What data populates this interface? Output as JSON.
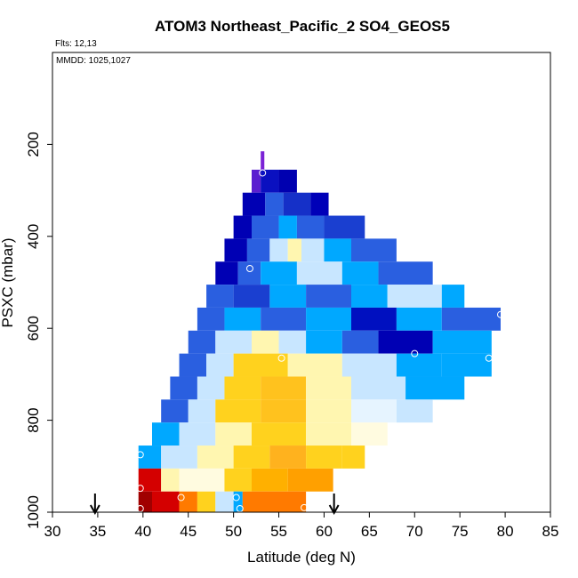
{
  "chart_data": {
    "type": "heatmap",
    "title": "ATOM3 Northeast_Pacific_2 SO4_GEOS5",
    "annotations": [
      "Flts: 12,13",
      "MMDD: 1025,1027"
    ],
    "xlabel": "Latitude (deg N)",
    "ylabel": "PSXC (mbar)",
    "xlim": [
      30,
      85
    ],
    "ylim": [
      1000,
      0
    ],
    "x_ticks": [
      30,
      35,
      40,
      45,
      50,
      55,
      60,
      65,
      70,
      75,
      80,
      85
    ],
    "y_ticks": [
      200,
      400,
      600,
      800,
      1000
    ],
    "y_tick_labels": [
      "200",
      "400",
      "600",
      "800",
      "1000"
    ],
    "colors": {
      "deep_purple": "#7b22d6",
      "dark_blue": "#0000b4",
      "blue": "#2a5fe0",
      "light_blue": "#00a8ff",
      "pale_blue": "#c8e6ff",
      "pale_yellow": "#fff6b0",
      "yellow": "#ffd21e",
      "orange": "#ff7a00",
      "red": "#d40000",
      "dark_red": "#a00000"
    },
    "rows": [
      {
        "p": [
          215,
          255
        ],
        "segments": [
          {
            "x0": 53.0,
            "x1": 53.4,
            "c": "#7b22d6"
          }
        ]
      },
      {
        "p": [
          255,
          305
        ],
        "segments": [
          {
            "x0": 52.0,
            "x1": 53.0,
            "c": "#5a1ed0"
          },
          {
            "x0": 53.0,
            "x1": 55.0,
            "c": "#0a10c0"
          },
          {
            "x0": 55.0,
            "x1": 57.0,
            "c": "#0000b0"
          }
        ]
      },
      {
        "p": [
          305,
          355
        ],
        "segments": [
          {
            "x0": 51.0,
            "x1": 53.5,
            "c": "#0000b4"
          },
          {
            "x0": 53.5,
            "x1": 55.5,
            "c": "#2a5fe0"
          },
          {
            "x0": 55.5,
            "x1": 58.5,
            "c": "#1530c8"
          },
          {
            "x0": 58.5,
            "x1": 60.5,
            "c": "#0000b8"
          }
        ]
      },
      {
        "p": [
          355,
          405
        ],
        "segments": [
          {
            "x0": 50.0,
            "x1": 52.0,
            "c": "#0000b4"
          },
          {
            "x0": 52.0,
            "x1": 55.0,
            "c": "#2a5fe0"
          },
          {
            "x0": 55.0,
            "x1": 57.0,
            "c": "#00a8ff"
          },
          {
            "x0": 57.0,
            "x1": 60.0,
            "c": "#2a5fe0"
          },
          {
            "x0": 60.0,
            "x1": 64.5,
            "c": "#1a3fd0"
          }
        ]
      },
      {
        "p": [
          405,
          455
        ],
        "segments": [
          {
            "x0": 49.0,
            "x1": 51.5,
            "c": "#0000b4"
          },
          {
            "x0": 51.5,
            "x1": 54.0,
            "c": "#2a5fe0"
          },
          {
            "x0": 54.0,
            "x1": 56.0,
            "c": "#c8e6ff"
          },
          {
            "x0": 56.0,
            "x1": 57.5,
            "c": "#fff6b0"
          },
          {
            "x0": 57.5,
            "x1": 60.0,
            "c": "#c8e6ff"
          },
          {
            "x0": 60.0,
            "x1": 63.0,
            "c": "#00a8ff"
          },
          {
            "x0": 63.0,
            "x1": 68.0,
            "c": "#2a5fe0"
          }
        ]
      },
      {
        "p": [
          455,
          505
        ],
        "segments": [
          {
            "x0": 48.0,
            "x1": 50.5,
            "c": "#0000b4"
          },
          {
            "x0": 50.5,
            "x1": 53.0,
            "c": "#2a5fe0"
          },
          {
            "x0": 53.0,
            "x1": 57.0,
            "c": "#00a8ff"
          },
          {
            "x0": 57.0,
            "x1": 62.0,
            "c": "#c8e6ff"
          },
          {
            "x0": 62.0,
            "x1": 66.0,
            "c": "#00a8ff"
          },
          {
            "x0": 66.0,
            "x1": 72.0,
            "c": "#2a5fe0"
          }
        ]
      },
      {
        "p": [
          505,
          555
        ],
        "segments": [
          {
            "x0": 47.0,
            "x1": 50.0,
            "c": "#2a5fe0"
          },
          {
            "x0": 50.0,
            "x1": 54.0,
            "c": "#1a3fd0"
          },
          {
            "x0": 54.0,
            "x1": 58.0,
            "c": "#00a8ff"
          },
          {
            "x0": 58.0,
            "x1": 63.0,
            "c": "#2a5fe0"
          },
          {
            "x0": 63.0,
            "x1": 67.0,
            "c": "#00a8ff"
          },
          {
            "x0": 67.0,
            "x1": 73.0,
            "c": "#c8e6ff"
          },
          {
            "x0": 73.0,
            "x1": 75.5,
            "c": "#00a8ff"
          }
        ]
      },
      {
        "p": [
          555,
          605
        ],
        "segments": [
          {
            "x0": 46.0,
            "x1": 49.0,
            "c": "#2a5fe0"
          },
          {
            "x0": 49.0,
            "x1": 53.0,
            "c": "#00a8ff"
          },
          {
            "x0": 53.0,
            "x1": 58.0,
            "c": "#2a5fe0"
          },
          {
            "x0": 58.0,
            "x1": 63.0,
            "c": "#00a8ff"
          },
          {
            "x0": 63.0,
            "x1": 68.0,
            "c": "#0010c0"
          },
          {
            "x0": 68.0,
            "x1": 73.0,
            "c": "#00a8ff"
          },
          {
            "x0": 73.0,
            "x1": 79.5,
            "c": "#2a5fe0"
          }
        ]
      },
      {
        "p": [
          605,
          655
        ],
        "segments": [
          {
            "x0": 45.0,
            "x1": 48.0,
            "c": "#2a5fe0"
          },
          {
            "x0": 48.0,
            "x1": 52.0,
            "c": "#c8e6ff"
          },
          {
            "x0": 52.0,
            "x1": 55.0,
            "c": "#fff6b0"
          },
          {
            "x0": 55.0,
            "x1": 58.0,
            "c": "#c8e6ff"
          },
          {
            "x0": 58.0,
            "x1": 62.0,
            "c": "#00a8ff"
          },
          {
            "x0": 62.0,
            "x1": 66.0,
            "c": "#2a5fe0"
          },
          {
            "x0": 66.0,
            "x1": 72.0,
            "c": "#0000b4"
          },
          {
            "x0": 72.0,
            "x1": 78.5,
            "c": "#00a8ff"
          }
        ]
      },
      {
        "p": [
          655,
          705
        ],
        "segments": [
          {
            "x0": 44.0,
            "x1": 47.0,
            "c": "#2a5fe0"
          },
          {
            "x0": 47.0,
            "x1": 50.0,
            "c": "#c8e6ff"
          },
          {
            "x0": 50.0,
            "x1": 56.0,
            "c": "#ffd21e"
          },
          {
            "x0": 56.0,
            "x1": 62.0,
            "c": "#fff6b0"
          },
          {
            "x0": 62.0,
            "x1": 68.0,
            "c": "#c8e6ff"
          },
          {
            "x0": 68.0,
            "x1": 73.0,
            "c": "#00a8ff"
          },
          {
            "x0": 73.0,
            "x1": 78.5,
            "c": "#00a8ff"
          }
        ]
      },
      {
        "p": [
          705,
          755
        ],
        "segments": [
          {
            "x0": 43.0,
            "x1": 46.0,
            "c": "#2a5fe0"
          },
          {
            "x0": 46.0,
            "x1": 49.0,
            "c": "#c8e6ff"
          },
          {
            "x0": 49.0,
            "x1": 53.0,
            "c": "#ffd21e"
          },
          {
            "x0": 53.0,
            "x1": 58.0,
            "c": "#ffc21e"
          },
          {
            "x0": 58.0,
            "x1": 63.0,
            "c": "#fff6b0"
          },
          {
            "x0": 63.0,
            "x1": 69.0,
            "c": "#c8e6ff"
          },
          {
            "x0": 69.0,
            "x1": 75.5,
            "c": "#00a8ff"
          }
        ]
      },
      {
        "p": [
          755,
          805
        ],
        "segments": [
          {
            "x0": 42.0,
            "x1": 45.0,
            "c": "#2a5fe0"
          },
          {
            "x0": 45.0,
            "x1": 48.0,
            "c": "#c8e6ff"
          },
          {
            "x0": 48.0,
            "x1": 53.0,
            "c": "#ffd21e"
          },
          {
            "x0": 53.0,
            "x1": 58.0,
            "c": "#ffc21e"
          },
          {
            "x0": 58.0,
            "x1": 63.0,
            "c": "#fff6b0"
          },
          {
            "x0": 63.0,
            "x1": 68.0,
            "c": "#e6f4ff"
          },
          {
            "x0": 68.0,
            "x1": 72.0,
            "c": "#c8e6ff"
          }
        ]
      },
      {
        "p": [
          805,
          855
        ],
        "segments": [
          {
            "x0": 41.0,
            "x1": 44.0,
            "c": "#00a8ff"
          },
          {
            "x0": 44.0,
            "x1": 48.0,
            "c": "#c8e6ff"
          },
          {
            "x0": 48.0,
            "x1": 52.0,
            "c": "#fff6b0"
          },
          {
            "x0": 52.0,
            "x1": 58.0,
            "c": "#ffd21e"
          },
          {
            "x0": 58.0,
            "x1": 63.0,
            "c": "#fff6b0"
          },
          {
            "x0": 63.0,
            "x1": 67.0,
            "c": "#fffbe0"
          }
        ]
      },
      {
        "p": [
          855,
          905
        ],
        "segments": [
          {
            "x0": 39.5,
            "x1": 42.0,
            "c": "#00a8ff"
          },
          {
            "x0": 42.0,
            "x1": 46.0,
            "c": "#c8e6ff"
          },
          {
            "x0": 46.0,
            "x1": 50.0,
            "c": "#fff6b0"
          },
          {
            "x0": 50.0,
            "x1": 54.0,
            "c": "#ffd21e"
          },
          {
            "x0": 54.0,
            "x1": 58.0,
            "c": "#ffb21e"
          },
          {
            "x0": 58.0,
            "x1": 62.0,
            "c": "#ffd21e"
          },
          {
            "x0": 62.0,
            "x1": 64.5,
            "c": "#ffd21e"
          }
        ]
      },
      {
        "p": [
          905,
          955
        ],
        "segments": [
          {
            "x0": 39.5,
            "x1": 42.0,
            "c": "#d40000"
          },
          {
            "x0": 42.0,
            "x1": 44.0,
            "c": "#fff6b0"
          },
          {
            "x0": 44.0,
            "x1": 49.0,
            "c": "#fffbe0"
          },
          {
            "x0": 49.0,
            "x1": 52.0,
            "c": "#ffd21e"
          },
          {
            "x0": 52.0,
            "x1": 56.0,
            "c": "#ffb000"
          },
          {
            "x0": 56.0,
            "x1": 61.0,
            "c": "#ffa000"
          }
        ]
      },
      {
        "p": [
          955,
          1005
        ],
        "segments": [
          {
            "x0": 39.5,
            "x1": 41.0,
            "c": "#a00000"
          },
          {
            "x0": 41.0,
            "x1": 44.0,
            "c": "#d40000"
          },
          {
            "x0": 44.0,
            "x1": 46.0,
            "c": "#ff7a00"
          },
          {
            "x0": 46.0,
            "x1": 48.0,
            "c": "#ffd21e"
          },
          {
            "x0": 48.0,
            "x1": 50.0,
            "c": "#c8e6ff"
          },
          {
            "x0": 50.0,
            "x1": 51.0,
            "c": "#00a8ff"
          },
          {
            "x0": 51.0,
            "x1": 58.0,
            "c": "#ff7a00"
          }
        ]
      }
    ],
    "markers": [
      {
        "x": 53.2,
        "y": 262
      },
      {
        "x": 51.8,
        "y": 470
      },
      {
        "x": 55.3,
        "y": 665
      },
      {
        "x": 70.0,
        "y": 655
      },
      {
        "x": 78.2,
        "y": 665
      },
      {
        "x": 79.5,
        "y": 570
      },
      {
        "x": 39.7,
        "y": 875
      },
      {
        "x": 39.7,
        "y": 948
      },
      {
        "x": 44.2,
        "y": 968
      },
      {
        "x": 50.3,
        "y": 968
      },
      {
        "x": 39.7,
        "y": 997
      },
      {
        "x": 50.7,
        "y": 998
      },
      {
        "x": 57.8,
        "y": 990
      }
    ],
    "arrows": [
      {
        "x": 34.7
      },
      {
        "x": 61.1
      }
    ]
  }
}
